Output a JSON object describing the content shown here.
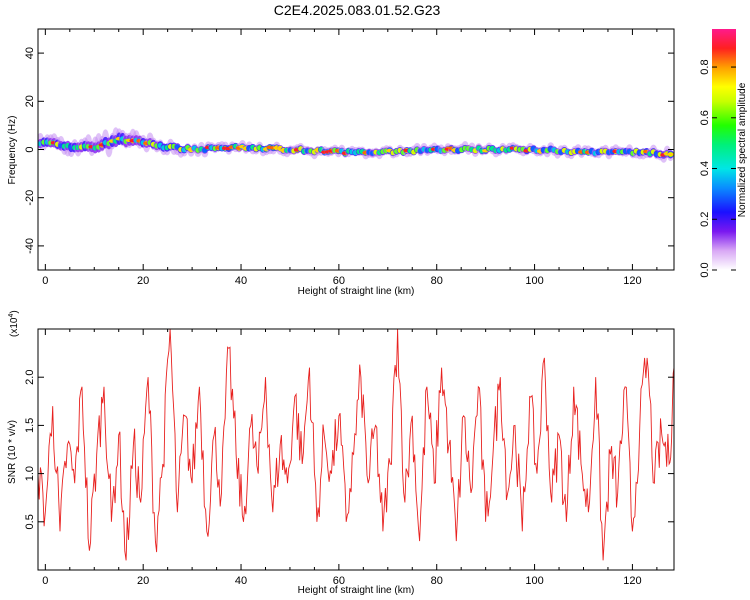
{
  "title": "C2E4.2025.083.01.52.G23",
  "chart_data": [
    {
      "type": "heatmap",
      "xlabel": "Height of straight line (km)",
      "ylabel": "Frequency (Hz)",
      "xlim": [
        -1.5,
        128.5
      ],
      "ylim": [
        -50,
        50
      ],
      "x_ticks": [
        0,
        20,
        40,
        60,
        80,
        100,
        120
      ],
      "y_ticks": [
        -40,
        -20,
        0,
        20,
        40
      ],
      "x_tick_labels": [
        "0",
        "20",
        "40",
        "60",
        "80",
        "100",
        "120"
      ],
      "y_tick_labels": [
        "-40",
        "-20",
        "0",
        "20",
        "40"
      ],
      "colorbar": {
        "label": "Normalized spectral amplitude",
        "range": [
          0,
          0.95
        ],
        "ticks": [
          0.0,
          0.2,
          0.4,
          0.6,
          0.8
        ],
        "tick_labels": [
          "0.0",
          "0.2",
          "0.4",
          "0.6",
          "0.8"
        ]
      },
      "ridge": {
        "x": [
          0,
          5,
          10,
          15,
          20,
          25,
          30,
          40,
          50,
          60,
          70,
          80,
          90,
          100,
          110,
          120,
          128
        ],
        "frequency": [
          3,
          1,
          1,
          4,
          3,
          1,
          0,
          1,
          0,
          -1,
          -1,
          0,
          0,
          0,
          -1,
          -1,
          -2
        ],
        "spread": [
          4,
          4,
          5,
          6,
          4,
          3,
          2,
          2,
          2,
          2,
          2,
          2,
          2,
          2,
          2,
          2,
          3
        ]
      }
    },
    {
      "type": "line",
      "xlabel": "Height of straight line (km)",
      "ylabel": "SNR (10 * v/v)",
      "y_scale_label": "(x10",
      "y_scale_exp": "4",
      "xlim": [
        -1.5,
        128.5
      ],
      "ylim": [
        0,
        2.5
      ],
      "x_ticks": [
        0,
        20,
        40,
        60,
        80,
        100,
        120
      ],
      "y_ticks": [
        0.5,
        1.0,
        1.5,
        2.0
      ],
      "x_tick_labels": [
        "0",
        "20",
        "40",
        "60",
        "80",
        "100",
        "120"
      ],
      "y_tick_labels": [
        "0.5",
        "1.0",
        "1.5",
        "2.0"
      ],
      "color": "#e8211f",
      "series": [
        {
          "x": [
            -1.5,
            0,
            1.5,
            3,
            4.5,
            6,
            7.5,
            9,
            10.5,
            12,
            13.5,
            15,
            16.5,
            18,
            19.5,
            21,
            22.5,
            24,
            25.5,
            27,
            28.5,
            30,
            31.5,
            33,
            34.5,
            36,
            37.5,
            39,
            40.5,
            42,
            43.5,
            45,
            46.5,
            48,
            49.5,
            51,
            52.5,
            54,
            55.5,
            57,
            58.5,
            60,
            61.5,
            63,
            64.5,
            66,
            67.5,
            69,
            70.5,
            72,
            73.5,
            75,
            76.5,
            78,
            79.5,
            81,
            82.5,
            84,
            85.5,
            87,
            88.5,
            90,
            91.5,
            93,
            94.5,
            96,
            97.5,
            99,
            100.5,
            102,
            103.5,
            105,
            106.5,
            108,
            109.5,
            111,
            112.5,
            114,
            115.5,
            117,
            118.5,
            120,
            121.5,
            123,
            124.5,
            126,
            127.5,
            128.5
          ],
          "y": [
            1.0,
            0.6,
            1.7,
            0.4,
            1.3,
            0.9,
            1.9,
            0.2,
            1.2,
            1.9,
            0.5,
            1.4,
            0.1,
            1.3,
            0.7,
            2.0,
            0.3,
            1.1,
            2.5,
            0.6,
            1.6,
            0.9,
            1.9,
            0.4,
            1.4,
            0.8,
            2.3,
            1.2,
            0.5,
            1.5,
            1.0,
            2.0,
            0.6,
            1.3,
            0.9,
            1.8,
            1.1,
            2.1,
            0.5,
            1.4,
            1.0,
            1.6,
            0.5,
            1.2,
            2.0,
            0.9,
            1.5,
            0.4,
            1.1,
            2.5,
            0.7,
            1.6,
            0.3,
            1.9,
            0.9,
            2.1,
            1.3,
            0.3,
            1.6,
            0.8,
            1.9,
            0.5,
            1.2,
            2.0,
            0.8,
            1.5,
            0.4,
            1.8,
            1.0,
            2.2,
            0.7,
            1.4,
            0.5,
            1.9,
            1.1,
            0.6,
            2.0,
            0.1,
            1.2,
            0.8,
            1.9,
            0.4,
            1.5,
            2.2,
            0.9,
            1.4,
            1.1,
            2.1
          ]
        }
      ]
    }
  ]
}
